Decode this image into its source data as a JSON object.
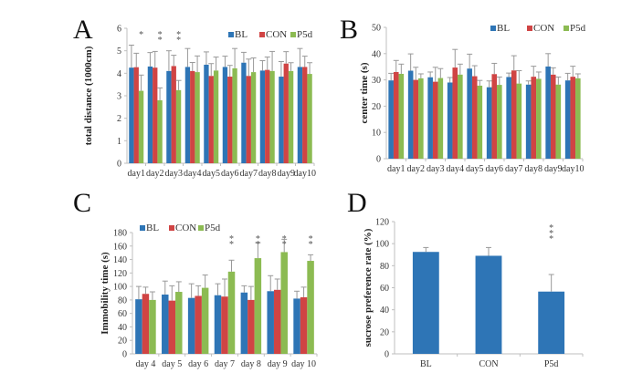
{
  "colors": {
    "BL": "#2e75b6",
    "CON": "#d04444",
    "P5d": "#8cbb52"
  },
  "chart_data": [
    {
      "id": "A",
      "type": "bar",
      "panel_label": "A",
      "ylabel": "total distance (1000cm)",
      "ylim": [
        0,
        6
      ],
      "yticks": [
        0,
        1,
        2,
        3,
        4,
        5,
        6
      ],
      "legend_position": "top-right",
      "categories": [
        "day1",
        "day2",
        "day3",
        "day4",
        "day5",
        "day6",
        "day7",
        "day8",
        "day9",
        "day10"
      ],
      "series": [
        {
          "name": "BL",
          "values": [
            4.25,
            4.3,
            4.1,
            4.28,
            4.38,
            4.28,
            4.47,
            4.12,
            3.85,
            4.28
          ],
          "errors": [
            1.0,
            0.62,
            0.9,
            0.82,
            0.57,
            0.48,
            0.46,
            0.44,
            0.67,
            0.82
          ]
        },
        {
          "name": "CON",
          "values": [
            4.27,
            4.25,
            4.32,
            4.1,
            3.88,
            3.85,
            3.88,
            4.15,
            4.43,
            4.28
          ],
          "errors": [
            0.62,
            0.72,
            0.48,
            0.38,
            0.55,
            0.5,
            0.75,
            0.57,
            0.53,
            0.48
          ]
        },
        {
          "name": "P5d",
          "values": [
            3.22,
            2.8,
            3.25,
            4.05,
            4.12,
            4.22,
            4.05,
            4.1,
            4.1,
            3.97
          ],
          "errors": [
            0.7,
            0.55,
            0.43,
            0.72,
            0.6,
            0.88,
            0.63,
            0.87,
            0.37,
            0.5
          ]
        }
      ],
      "annotations": [
        {
          "category": "day1",
          "text": "*"
        },
        {
          "category": "day2",
          "text": "**"
        },
        {
          "category": "day3",
          "text": "**"
        }
      ]
    },
    {
      "id": "B",
      "type": "bar",
      "panel_label": "B",
      "ylabel": "center time (s)",
      "ylim": [
        0,
        50
      ],
      "yticks": [
        0,
        10,
        20,
        30,
        40,
        50
      ],
      "legend_position": "top-right",
      "categories": [
        "day1",
        "day2",
        "day3",
        "day4",
        "day5",
        "day6",
        "day7",
        "day8",
        "day9",
        "day10"
      ],
      "series": [
        {
          "name": "BL",
          "values": [
            29.8,
            33.5,
            31.0,
            29.0,
            34.3,
            27.2,
            31.1,
            28.2,
            35.1,
            29.8
          ],
          "errors": [
            2.7,
            6.4,
            2.0,
            1.9,
            5.5,
            2.4,
            1.5,
            1.4,
            4.9,
            2.7
          ]
        },
        {
          "name": "CON",
          "values": [
            33.0,
            30.0,
            29.3,
            34.7,
            31.4,
            32.2,
            33.6,
            31.2,
            32.0,
            31.2
          ],
          "errors": [
            4.4,
            4.8,
            5.5,
            6.9,
            4.0,
            4.1,
            5.6,
            4.0,
            2.6,
            4.0
          ]
        },
        {
          "name": "P5d",
          "values": [
            32.3,
            30.6,
            30.7,
            32.0,
            27.8,
            28.1,
            28.6,
            30.4,
            28.2,
            30.6
          ],
          "errors": [
            3.7,
            1.7,
            3.6,
            4.0,
            2.0,
            3.0,
            4.9,
            2.6,
            2.9,
            1.7
          ]
        }
      ],
      "annotations": []
    },
    {
      "id": "C",
      "type": "bar",
      "panel_label": "C",
      "ylabel": "Immobility time (s)",
      "ylim": [
        0,
        180
      ],
      "yticks": [
        0,
        20,
        40,
        60,
        80,
        100,
        120,
        140,
        160,
        180
      ],
      "legend_position": "top-left",
      "categories": [
        "day 4",
        "day 5",
        "day 6",
        "day 7",
        "day 8",
        "day 9",
        "day 10"
      ],
      "series": [
        {
          "name": "BL",
          "values": [
            81,
            88,
            83,
            87,
            91,
            93,
            82
          ],
          "errors": [
            19,
            20,
            21,
            17,
            10,
            23,
            11
          ]
        },
        {
          "name": "CON",
          "values": [
            89,
            79,
            86,
            85,
            80,
            95,
            84
          ],
          "errors": [
            10,
            22,
            15,
            26,
            20,
            16,
            15
          ]
        },
        {
          "name": "P5d",
          "values": [
            80,
            92,
            98,
            122,
            142,
            151,
            138
          ],
          "errors": [
            12,
            15,
            19,
            17,
            23,
            19,
            9
          ]
        }
      ],
      "annotations": [
        {
          "category": "day 7",
          "text": "**"
        },
        {
          "category": "day 8",
          "text": "**"
        },
        {
          "category": "day 9",
          "text": "**"
        },
        {
          "category": "day 10",
          "text": "**"
        }
      ]
    },
    {
      "id": "D",
      "type": "bar",
      "panel_label": "D",
      "ylabel": "sucrose preference rate (%)",
      "ylim": [
        0,
        120
      ],
      "yticks": [
        0,
        20,
        40,
        60,
        80,
        100,
        120
      ],
      "legend_position": "none",
      "categories": [
        "BL",
        "CON",
        "P5d"
      ],
      "series": [
        {
          "name": "sucrose preference",
          "values": [
            92.5,
            89,
            56.5
          ],
          "errors": [
            4,
            7.5,
            15.5
          ]
        }
      ],
      "annotations": [
        {
          "category": "P5d",
          "text": "***"
        }
      ]
    }
  ]
}
